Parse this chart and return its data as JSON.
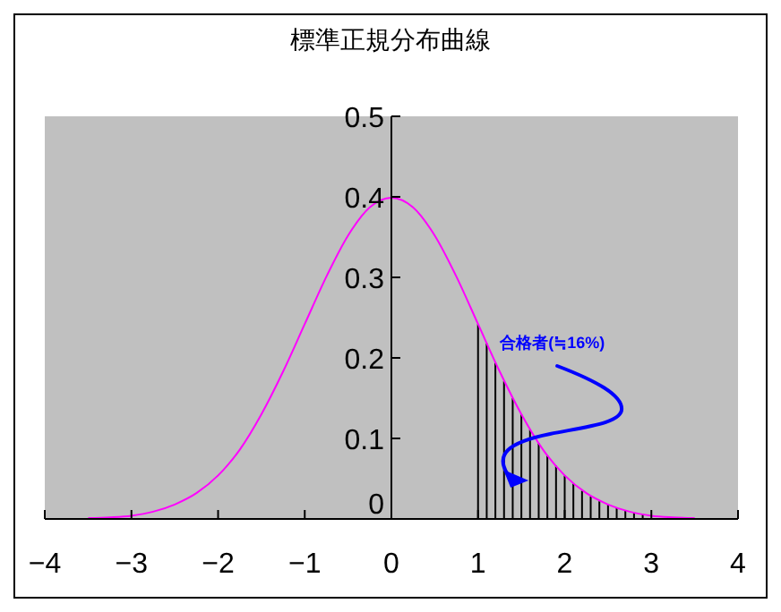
{
  "chart_data": {
    "type": "line",
    "title": "標準正規分布曲線",
    "series": [
      {
        "color": "#ff00ff",
        "x": [
          -3.5,
          -3.25,
          -3,
          -2.75,
          -2.5,
          -2.25,
          -2,
          -1.75,
          -1.5,
          -1.25,
          -1,
          -0.75,
          -0.5,
          -0.25,
          0,
          0.25,
          0.5,
          0.75,
          1,
          1.25,
          1.5,
          1.75,
          2,
          2.25,
          2.5,
          2.75,
          3,
          3.25,
          3.5
        ],
        "values": [
          0.001,
          0.002,
          0.004,
          0.009,
          0.018,
          0.032,
          0.054,
          0.086,
          0.13,
          0.183,
          0.242,
          0.301,
          0.352,
          0.387,
          0.399,
          0.387,
          0.352,
          0.301,
          0.242,
          0.183,
          0.13,
          0.086,
          0.054,
          0.032,
          0.018,
          0.009,
          0.004,
          0.002,
          0.001
        ]
      },
      {
        "type": "bar",
        "color": "#000000",
        "x": [
          1,
          1.1,
          1.2,
          1.3,
          1.4,
          1.5,
          1.6,
          1.7,
          1.8,
          1.9,
          2,
          2.1,
          2.2,
          2.3,
          2.4,
          2.5,
          2.6,
          2.7,
          2.8,
          2.9,
          3.2,
          3.3
        ],
        "values": [
          0.242,
          0.218,
          0.194,
          0.171,
          0.15,
          0.13,
          0.111,
          0.094,
          0.079,
          0.066,
          0.054,
          0.044,
          0.035,
          0.028,
          0.022,
          0.018,
          0.014,
          0.01,
          0.008,
          0.006,
          0.002,
          0.002
        ]
      }
    ],
    "xlim": [
      -4,
      4
    ],
    "xticks": [
      -4,
      -3,
      -2,
      -1,
      0,
      1,
      2,
      3,
      4
    ],
    "ylim": [
      0,
      0.5
    ],
    "yticks": [
      0,
      0.1,
      0.2,
      0.3,
      0.4,
      0.5
    ],
    "grid": false,
    "marker": "none",
    "line_style": "solid",
    "annotations": [
      {
        "text": "合格者(≒16%)",
        "x": 1.5,
        "y": 0.05
      }
    ]
  }
}
